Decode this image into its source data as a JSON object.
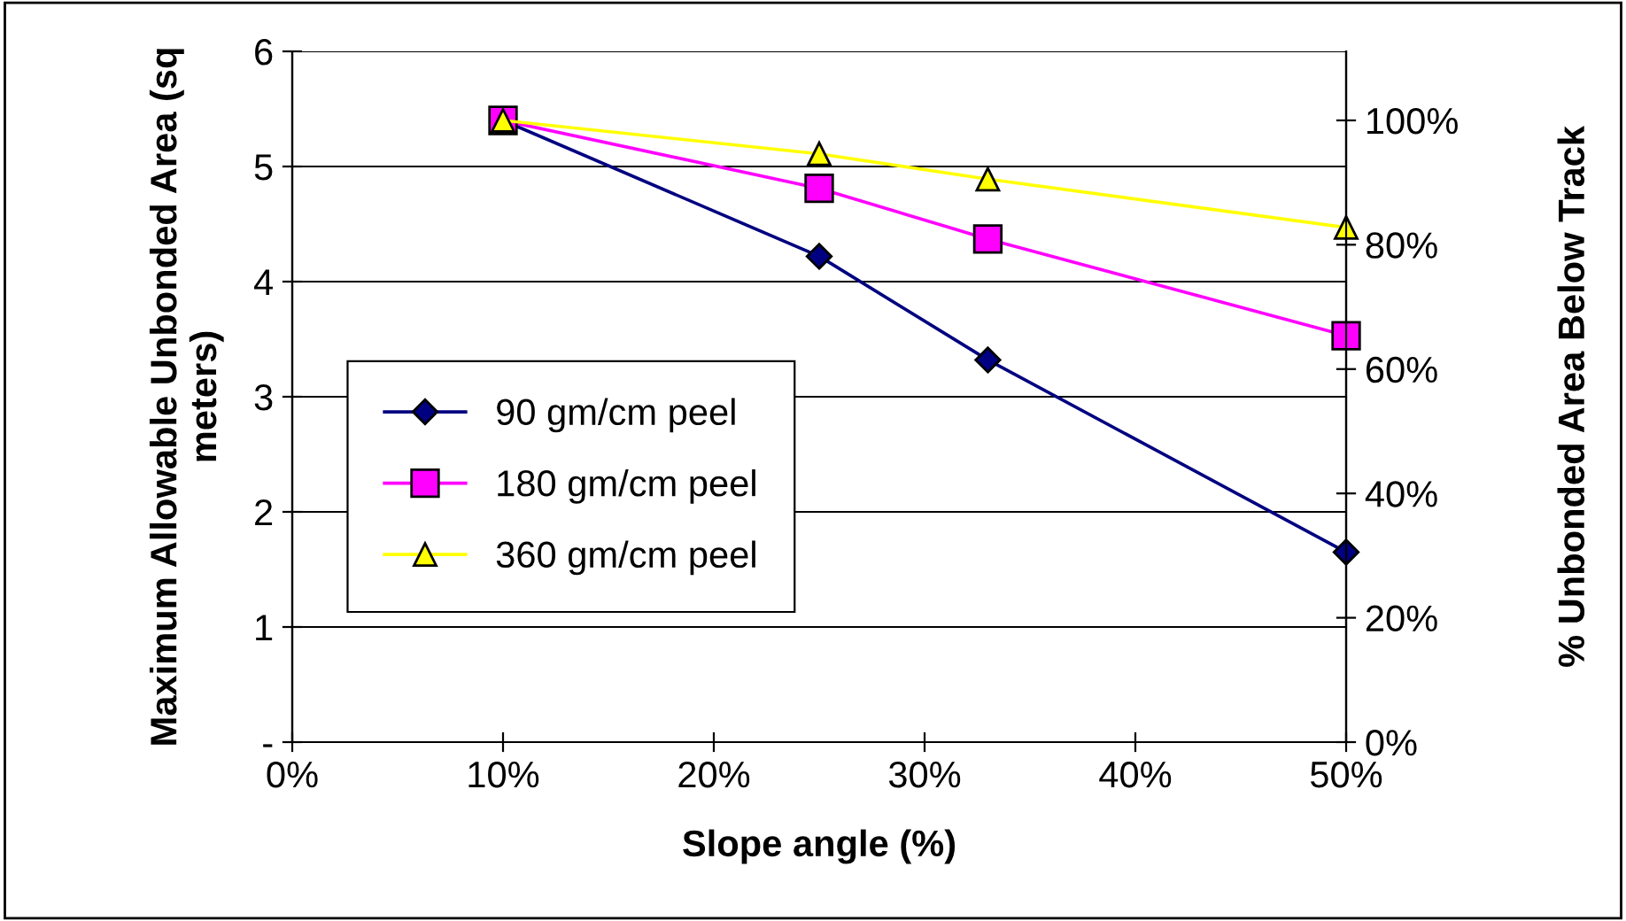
{
  "chart_data": {
    "type": "line",
    "xlabel": "Slope angle (%)",
    "ylabel": "Maximum Allowable Unbonded Area (sq meters)",
    "y2label": "% Unbonded Area Below Track",
    "x": [
      10,
      25,
      33,
      50
    ],
    "series": [
      {
        "name": "90 gm/cm peel",
        "color": "#000080",
        "marker": "diamond",
        "values": [
          5.4,
          4.22,
          3.32,
          1.65
        ]
      },
      {
        "name": "180 gm/cm peel",
        "color": "#ff00ff",
        "marker": "square",
        "values": [
          5.4,
          4.81,
          4.37,
          3.53
        ]
      },
      {
        "name": "360 gm/cm peel",
        "color": "#ffff00",
        "marker": "triangle",
        "values": [
          5.4,
          5.11,
          4.89,
          4.47
        ]
      }
    ],
    "xlim": [
      0,
      50
    ],
    "xticks": [
      {
        "value": 0,
        "label": "0%"
      },
      {
        "value": 10,
        "label": "10%"
      },
      {
        "value": 20,
        "label": "20%"
      },
      {
        "value": 30,
        "label": "30%"
      },
      {
        "value": 40,
        "label": "40%"
      },
      {
        "value": 50,
        "label": "50%"
      }
    ],
    "ylim": [
      0,
      6
    ],
    "yticks": [
      {
        "value": 0,
        "label": "-"
      },
      1,
      2,
      3,
      4,
      5,
      6
    ],
    "y2lim": [
      0,
      111.1
    ],
    "y2ticks": [
      {
        "value": 0,
        "label": "0%"
      },
      {
        "value": 20,
        "label": "20%"
      },
      {
        "value": 40,
        "label": "40%"
      },
      {
        "value": 60,
        "label": "60%"
      },
      {
        "value": 80,
        "label": "80%"
      },
      {
        "value": 100,
        "label": "100%"
      }
    ],
    "grid": "y",
    "legend": "left",
    "line_style": "solid"
  }
}
